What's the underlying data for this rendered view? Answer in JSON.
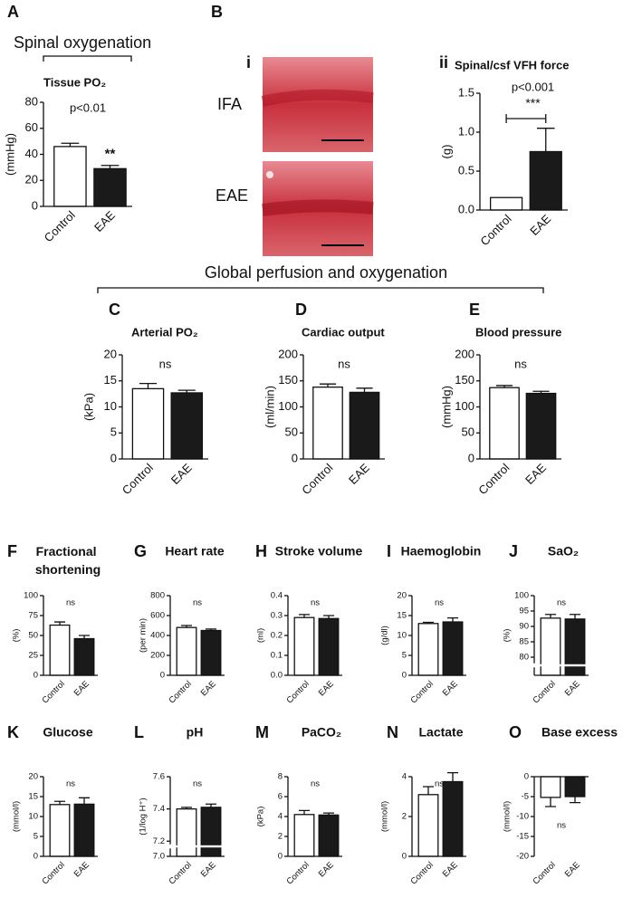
{
  "headers": {
    "spinal": "Spinal oxygenation",
    "global": "Global perfusion and oxygenation"
  },
  "panel_b": {
    "letter": "B",
    "image_panel": "i",
    "images": [
      "IFA",
      "EAE"
    ]
  },
  "chart_data": [
    {
      "type": "bar",
      "panel": "A",
      "title": "Tissue PO₂",
      "ylabel": "(mmHg)",
      "categories": [
        "Control",
        "EAE"
      ],
      "values": [
        46,
        29
      ],
      "errors": [
        2.5,
        2.5
      ],
      "colors": [
        "#ffffff",
        "#1a1a1a"
      ],
      "ylim": [
        0,
        80
      ],
      "yticks": [
        0,
        20,
        40,
        60,
        80
      ],
      "p_value": "p<0.01",
      "significance": "**"
    },
    {
      "type": "bar",
      "panel": "ii",
      "title": "Spinal/csf VFH force",
      "ylabel": "(g)",
      "categories": [
        "Control",
        "EAE"
      ],
      "values": [
        0.16,
        0.75
      ],
      "errors": [
        null,
        0.3
      ],
      "colors": [
        "#ffffff",
        "#1a1a1a"
      ],
      "ylim": [
        0,
        1.5
      ],
      "yticks": [
        {
          "value": 0,
          "label": "0.0"
        },
        {
          "value": 0.5,
          "label": "0.5"
        },
        {
          "value": 1,
          "label": "1.0"
        },
        {
          "value": 1.5,
          "label": "1.5"
        }
      ],
      "p_value": "p<0.001",
      "significance": "***"
    },
    {
      "type": "bar",
      "panel": "C",
      "title": "Arterial PO₂",
      "ylabel": "(kPa)",
      "categories": [
        "Control",
        "EAE"
      ],
      "values": [
        13.5,
        12.7
      ],
      "errors": [
        1.0,
        0.5
      ],
      "colors": [
        "#ffffff",
        "#1a1a1a"
      ],
      "ylim": [
        0,
        20
      ],
      "yticks": [
        0,
        5,
        10,
        15,
        20
      ],
      "significance": "ns"
    },
    {
      "type": "bar",
      "panel": "D",
      "title": "Cardiac output",
      "ylabel": "(ml/min)",
      "categories": [
        "Control",
        "EAE"
      ],
      "values": [
        138,
        128
      ],
      "errors": [
        6,
        8
      ],
      "colors": [
        "#ffffff",
        "#1a1a1a"
      ],
      "ylim": [
        0,
        200
      ],
      "yticks": [
        0,
        50,
        100,
        150,
        200
      ],
      "significance": "ns"
    },
    {
      "type": "bar",
      "panel": "E",
      "title": "Blood pressure",
      "ylabel": "(mmHg)",
      "categories": [
        "Control",
        "EAE"
      ],
      "values": [
        137,
        126
      ],
      "errors": [
        4,
        4
      ],
      "colors": [
        "#ffffff",
        "#1a1a1a"
      ],
      "ylim": [
        0,
        200
      ],
      "yticks": [
        0,
        50,
        100,
        150,
        200
      ],
      "significance": "ns"
    },
    {
      "type": "bar",
      "panel": "F",
      "title": "Fractional shortening",
      "ylabel": "(%)",
      "categories": [
        "Control",
        "EAE"
      ],
      "values": [
        63,
        46
      ],
      "errors": [
        4,
        4
      ],
      "colors": [
        "#ffffff",
        "#1a1a1a"
      ],
      "ylim": [
        0,
        100
      ],
      "yticks": [
        0,
        25,
        50,
        75,
        100
      ],
      "significance": "ns"
    },
    {
      "type": "bar",
      "panel": "G",
      "title": "Heart rate",
      "ylabel": "(per min)",
      "categories": [
        "Control",
        "EAE"
      ],
      "values": [
        480,
        450
      ],
      "errors": [
        20,
        15
      ],
      "colors": [
        "#ffffff",
        "#1a1a1a"
      ],
      "ylim": [
        0,
        800
      ],
      "yticks": [
        0,
        200,
        400,
        600,
        800
      ],
      "significance": "ns"
    },
    {
      "type": "bar",
      "panel": "H",
      "title": "Stroke volume",
      "ylabel": "(ml)",
      "categories": [
        "Control",
        "EAE"
      ],
      "values": [
        0.29,
        0.285
      ],
      "errors": [
        0.015,
        0.015
      ],
      "colors": [
        "#ffffff",
        "#1a1a1a"
      ],
      "ylim": [
        0,
        0.4
      ],
      "yticks": [
        {
          "value": 0,
          "label": "0.0"
        },
        0.1,
        0.2,
        0.3,
        0.4
      ],
      "significance": "ns"
    },
    {
      "type": "bar",
      "panel": "I",
      "title": "Haemoglobin",
      "ylabel": "(g/dl)",
      "categories": [
        "Control",
        "EAE"
      ],
      "values": [
        13,
        13.4
      ],
      "errors": [
        0.3,
        1.0
      ],
      "colors": [
        "#ffffff",
        "#1a1a1a"
      ],
      "ylim": [
        0,
        20
      ],
      "yticks": [
        0,
        5,
        10,
        15,
        20
      ],
      "significance": "ns"
    },
    {
      "type": "bar",
      "panel": "J",
      "title": "SaO₂",
      "ylabel": "(%)",
      "categories": [
        "Control",
        "EAE"
      ],
      "values": [
        92.7,
        92.4
      ],
      "errors": [
        1.2,
        1.5
      ],
      "colors": [
        "#ffffff",
        "#1a1a1a"
      ],
      "ylim": [
        0,
        100
      ],
      "ybreak": [
        5,
        78
      ],
      "yticks": [
        80,
        85,
        90,
        95,
        100
      ],
      "significance": "ns"
    },
    {
      "type": "bar",
      "panel": "K",
      "title": "Glucose",
      "ylabel": "(mmol/l)",
      "categories": [
        "Control",
        "EAE"
      ],
      "values": [
        13,
        13.1
      ],
      "errors": [
        0.8,
        1.6
      ],
      "colors": [
        "#ffffff",
        "#1a1a1a"
      ],
      "ylim": [
        0,
        20
      ],
      "yticks": [
        0,
        5,
        10,
        15,
        20
      ],
      "significance": "ns"
    },
    {
      "type": "bar",
      "panel": "L",
      "title": "pH",
      "ylabel": "(1/log H⁺)",
      "categories": [
        "Control",
        "EAE"
      ],
      "values": [
        7.4,
        7.41
      ],
      "errors": [
        0.01,
        0.02
      ],
      "colors": [
        "#ffffff",
        "#1a1a1a"
      ],
      "ylim": [
        7.0,
        7.6
      ],
      "ybreak": [
        7.05,
        7.18
      ],
      "yticks": [
        {
          "value": 7.0,
          "label": "7.0"
        },
        7.2,
        7.4,
        7.6
      ],
      "significance": "ns"
    },
    {
      "type": "bar",
      "panel": "M",
      "title": "PaCO₂",
      "ylabel": "(kPa)",
      "categories": [
        "Control",
        "EAE"
      ],
      "values": [
        4.2,
        4.15
      ],
      "errors": [
        0.4,
        0.2
      ],
      "colors": [
        "#ffffff",
        "#1a1a1a"
      ],
      "ylim": [
        0,
        8
      ],
      "yticks": [
        0,
        2,
        4,
        6,
        8
      ],
      "significance": "ns"
    },
    {
      "type": "bar",
      "panel": "N",
      "title": "Lactate",
      "ylabel": "(mmol/l)",
      "categories": [
        "Control",
        "EAE"
      ],
      "values": [
        3.1,
        3.75
      ],
      "errors": [
        0.4,
        0.45
      ],
      "colors": [
        "#ffffff",
        "#1a1a1a"
      ],
      "ylim": [
        0,
        4
      ],
      "yticks": [
        0,
        2,
        4
      ],
      "significance": "ns"
    },
    {
      "type": "bar",
      "panel": "O",
      "title": "Base excess",
      "ylabel": "(mmol/l)",
      "categories": [
        "Control",
        "EAE"
      ],
      "values": [
        -5.2,
        -5.0
      ],
      "errors": [
        2.3,
        1.5
      ],
      "colors": [
        "#ffffff",
        "#1a1a1a"
      ],
      "ylim": [
        -20,
        0
      ],
      "yticks": [
        -20,
        -15,
        -10,
        -5,
        0
      ],
      "significance": "ns"
    }
  ]
}
